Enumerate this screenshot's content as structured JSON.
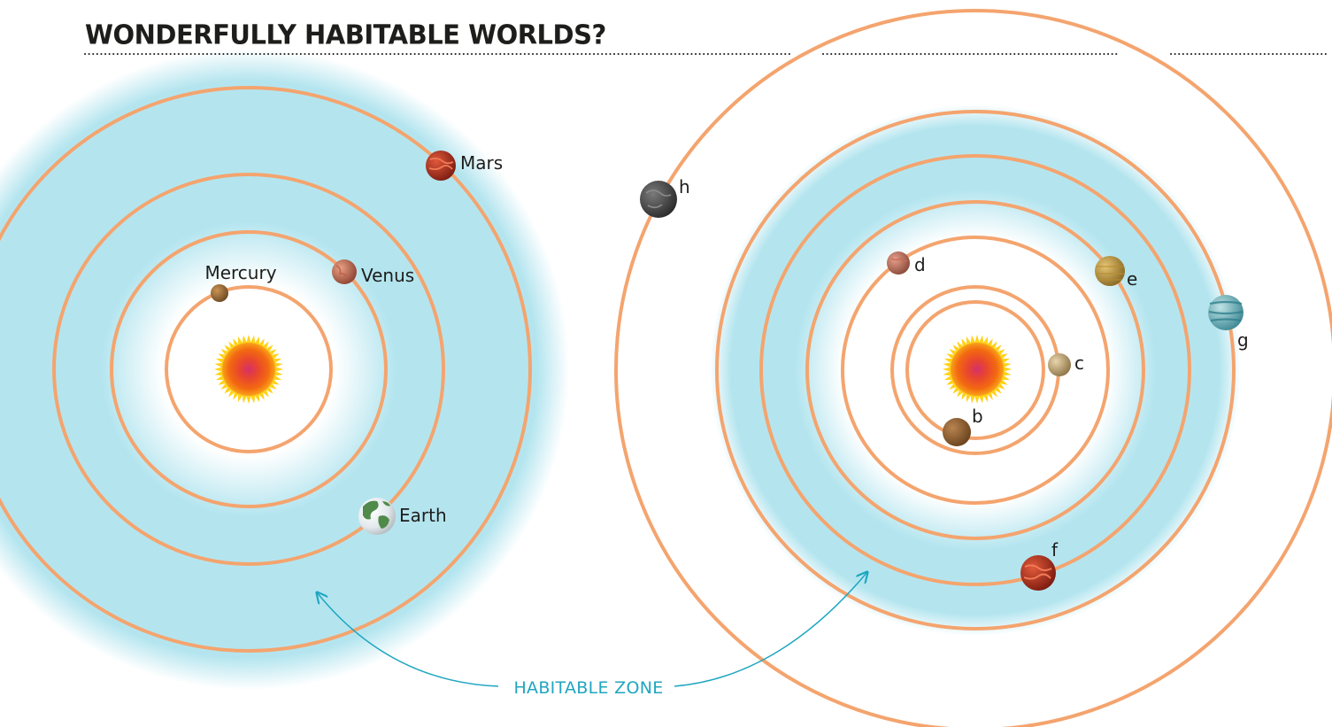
{
  "title": "WONDERFULLY HABITABLE WORLDS?",
  "habitable_zone_label": "HABITABLE ZONE",
  "colors": {
    "orbit": "#f4a46e",
    "habitable_zone": "#b4e5ef",
    "title": "#1d1d1b",
    "annotation": "#1fa6c0",
    "star_core": "#d6306a",
    "star_glow": "#ffd21a"
  },
  "solar_system": {
    "star_icon": "sun-icon",
    "planets": [
      {
        "key": "mercury",
        "label": "Mercury",
        "icon": "rocky-planet-icon"
      },
      {
        "key": "venus",
        "label": "Venus",
        "icon": "rocky-planet-icon"
      },
      {
        "key": "earth",
        "label": "Earth",
        "icon": "earth-globe-icon"
      },
      {
        "key": "mars",
        "label": "Mars",
        "icon": "rocky-planet-icon"
      }
    ]
  },
  "exoplanet_system": {
    "star_icon": "star-icon",
    "planets": [
      {
        "key": "b",
        "label": "b",
        "icon": "rocky-planet-icon"
      },
      {
        "key": "c",
        "label": "c",
        "icon": "rocky-planet-icon"
      },
      {
        "key": "d",
        "label": "d",
        "icon": "rocky-planet-icon"
      },
      {
        "key": "e",
        "label": "e",
        "icon": "rocky-planet-icon"
      },
      {
        "key": "f",
        "label": "f",
        "icon": "rocky-planet-icon"
      },
      {
        "key": "g",
        "label": "g",
        "icon": "striped-planet-icon"
      },
      {
        "key": "h",
        "label": "h",
        "icon": "grey-planet-icon"
      }
    ]
  }
}
